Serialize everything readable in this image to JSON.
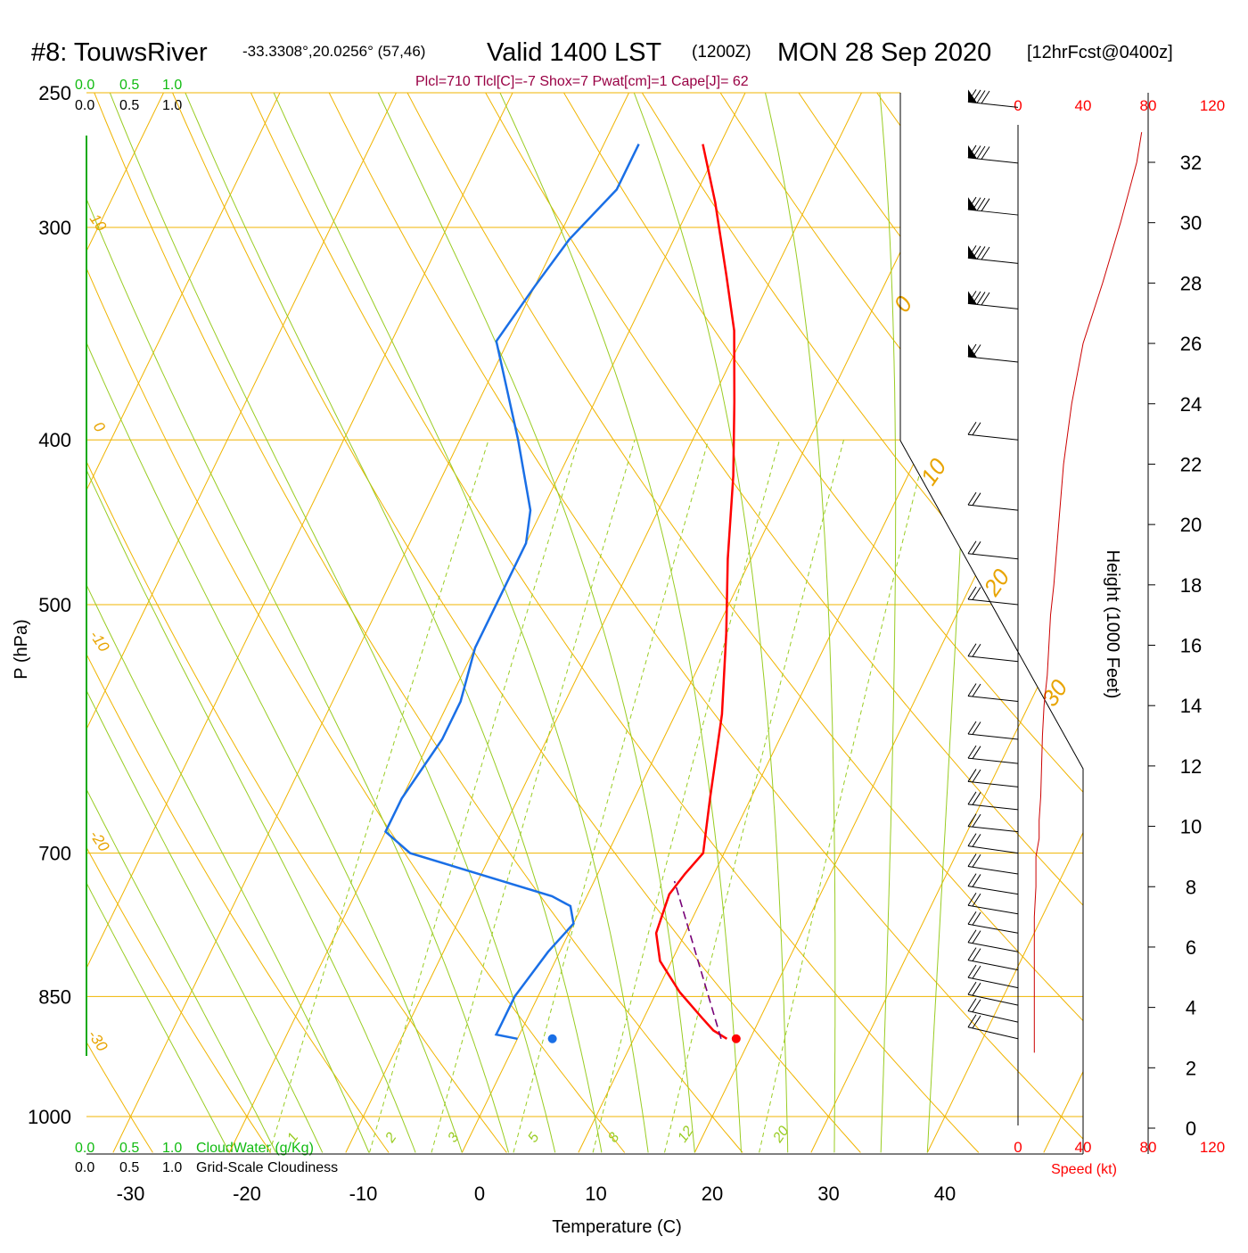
{
  "header": {
    "station": "#8: TouwsRiver",
    "coords": "-33.3308°,20.0256° (57,46)",
    "valid": "Valid 1400 LST",
    "zulu": "(1200Z)",
    "date": "MON 28 Sep 2020",
    "forecast": "[12hrFcst@0400z]",
    "params": "Plcl=710 Tlcl[C]=-7 Shox=7 Pwat[cm]=1 Cape[J]= 62"
  },
  "cloud_scale": {
    "values": [
      "0.0",
      "0.5",
      "1.0"
    ],
    "cloudwater_label": "CloudWater (g/Kg)",
    "cloudiness_label": "Grid-Scale Cloudiness"
  },
  "axes": {
    "pressure_label": "P (hPa)",
    "temperature_label": "Temperature (C)",
    "height_label": "Height (1000 Feet)",
    "speed_label": "Speed (kt)",
    "pressure_ticks": [
      "250",
      "300",
      "400",
      "500",
      "700",
      "850",
      "1000"
    ],
    "temperature_ticks": [
      "-30",
      "-20",
      "-10",
      "0",
      "10",
      "20",
      "30",
      "40"
    ],
    "height_ticks": [
      "0",
      "2",
      "4",
      "6",
      "8",
      "10",
      "12",
      "14",
      "16",
      "18",
      "20",
      "22",
      "24",
      "26",
      "28",
      "30",
      "32"
    ],
    "speed_ticks": [
      "0",
      "40",
      "80",
      "120"
    ]
  },
  "isotherm_labels": [
    "10",
    "0",
    "-10",
    "-20",
    "-30",
    "0",
    "10",
    "20",
    "30"
  ],
  "mixing_ratio_labels": [
    "1",
    "2",
    "3",
    "5",
    "8",
    "12",
    "20"
  ],
  "colors": {
    "temperature": "#ff0000",
    "dewpoint": "#1a6fe6",
    "isotherm": "#f0b400",
    "mixing_ratio": "#99cc22",
    "cloud": "#11aa11",
    "parcel": "#770077",
    "params": "#990044"
  },
  "chart_data": {
    "type": "line",
    "title": "#8: TouwsRiver -33.3308°,20.0256° (57,46) Valid 1400 LST (1200Z) MON 28 Sep 2020 [12hrFcst@0400z]",
    "xlabel": "Temperature (C)",
    "ylabel": "P (hPa)",
    "xlim": [
      -34,
      36
    ],
    "ylim": [
      1050,
      250
    ],
    "y_scale": "log",
    "series": [
      {
        "name": "Temperature",
        "color": "#ff0000",
        "points": [
          [
            18.0,
            900
          ],
          [
            16.5,
            890
          ],
          [
            15,
            875
          ],
          [
            12,
            845
          ],
          [
            9,
            810
          ],
          [
            7.5,
            780
          ],
          [
            7,
            740
          ],
          [
            7.5,
            720
          ],
          [
            8.2,
            700
          ],
          [
            6.5,
            650
          ],
          [
            4,
            580
          ],
          [
            1,
            520
          ],
          [
            -2,
            470
          ],
          [
            -5,
            420
          ],
          [
            -8,
            380
          ],
          [
            -11,
            345
          ],
          [
            -14,
            320
          ],
          [
            -18,
            290
          ],
          [
            -21.5,
            268
          ]
        ]
      },
      {
        "name": "Dewpoint",
        "color": "#1a6fe6",
        "points": [
          [
            0,
            900
          ],
          [
            -2,
            895
          ],
          [
            -2,
            885
          ],
          [
            -2,
            850
          ],
          [
            -1,
            800
          ],
          [
            0,
            770
          ],
          [
            -1,
            752
          ],
          [
            -3,
            742
          ],
          [
            -17,
            700
          ],
          [
            -20,
            680
          ],
          [
            -20,
            650
          ],
          [
            -19,
            600
          ],
          [
            -19,
            570
          ],
          [
            -20,
            530
          ],
          [
            -20,
            490
          ],
          [
            -20,
            460
          ],
          [
            -21,
            440
          ],
          [
            -25,
            400
          ],
          [
            -31,
            350
          ],
          [
            -30,
            325
          ],
          [
            -29,
            305
          ],
          [
            -27,
            285
          ],
          [
            -27,
            268
          ]
        ]
      },
      {
        "name": "Parcel",
        "color": "#770077",
        "points": [
          [
            17.5,
            900
          ],
          [
            6.9,
            727
          ]
        ]
      }
    ],
    "surface_points": {
      "temperature": [
        18.8,
        900
      ],
      "dewpoint": [
        3.0,
        900
      ]
    },
    "height_profile": {
      "ylabel": "Height (1000 Feet)",
      "ylim": [
        0,
        33
      ]
    },
    "wind_speed": {
      "xlabel": "Speed (kt)",
      "xlim": [
        0,
        120
      ],
      "color": "#cc0000",
      "points": [
        [
          10,
          2.5
        ],
        [
          10,
          3
        ],
        [
          10,
          5
        ],
        [
          10,
          7
        ],
        [
          11,
          8
        ],
        [
          11,
          9
        ],
        [
          13,
          9.6
        ],
        [
          13,
          10.2
        ],
        [
          14,
          11
        ],
        [
          15,
          13
        ],
        [
          16,
          14
        ],
        [
          18,
          15
        ],
        [
          20,
          17
        ],
        [
          22,
          18
        ],
        [
          25,
          20
        ],
        [
          28,
          22
        ],
        [
          33,
          24
        ],
        [
          40,
          26
        ],
        [
          52,
          28
        ],
        [
          63,
          30
        ],
        [
          73,
          32
        ],
        [
          76,
          33
        ]
      ]
    },
    "wind_barbs_pressure": [
      900,
      880,
      860,
      840,
      820,
      800,
      780,
      760,
      740,
      720,
      700,
      680,
      660,
      640,
      620,
      600,
      570,
      540,
      500,
      470,
      440,
      400,
      360,
      335,
      315,
      295,
      275,
      255
    ]
  }
}
